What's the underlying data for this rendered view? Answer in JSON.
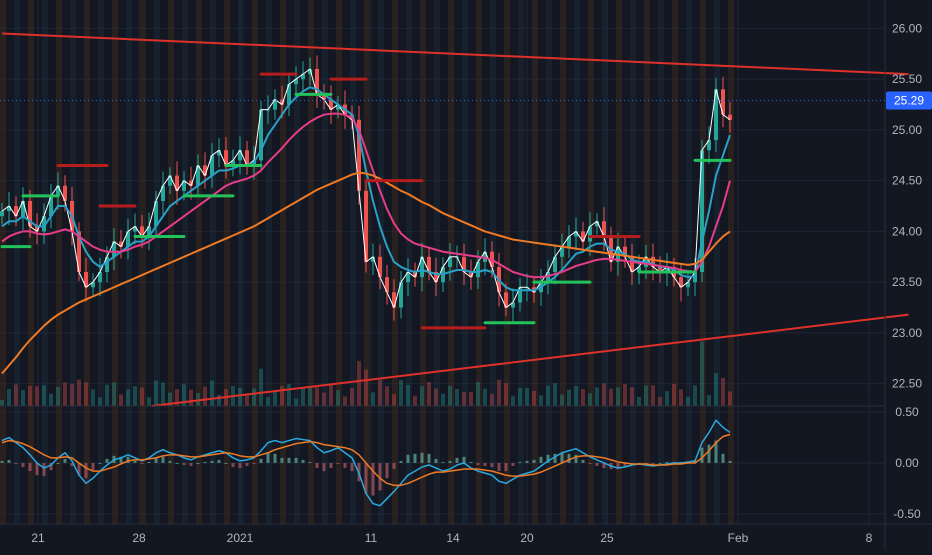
{
  "colors": {
    "background": "#131722",
    "grid": "#1f2535",
    "axis_text": "#b2b5be",
    "trendline": "#e0302a",
    "ema_short": "#ffffff",
    "ema_mid": "#29a0c8",
    "ema_long": "#e83c8a",
    "sma_200": "#f07a24",
    "stop_bull": "#22c35a",
    "stop_bear": "#b81d1d",
    "macd": "#29a9e0",
    "signal": "#f07a24",
    "price_tag_bg": "#2962ff"
  },
  "chart_data": [
    {
      "type": "line",
      "panel": "price",
      "x_tick_labels": [
        "21",
        "28",
        "2021",
        "11",
        "14",
        "20",
        "25",
        "Feb",
        "8"
      ],
      "y_tick_labels": [
        "26.00",
        "25.50",
        "25.00",
        "24.50",
        "24.00",
        "23.50",
        "23.00",
        "22.50"
      ],
      "ylim": [
        22.28,
        26.28
      ],
      "last_price": "25.29",
      "series": [
        {
          "key": "ma_short",
          "color": "#ffffff",
          "values": [
            24.2,
            24.25,
            24.15,
            24.3,
            24.05,
            24.0,
            24.15,
            24.35,
            24.45,
            24.3,
            24.0,
            23.6,
            23.45,
            23.5,
            23.6,
            23.75,
            23.9,
            23.85,
            24.0,
            24.05,
            23.95,
            24.05,
            24.3,
            24.45,
            24.55,
            24.4,
            24.5,
            24.45,
            24.65,
            24.55,
            24.75,
            24.8,
            24.65,
            24.7,
            24.8,
            24.65,
            24.7,
            25.2,
            25.2,
            25.3,
            25.25,
            25.45,
            25.5,
            25.55,
            25.6,
            25.35,
            25.3,
            25.2,
            25.25,
            25.15,
            25.1,
            24.4,
            23.7,
            23.75,
            23.55,
            23.4,
            23.25,
            23.5,
            23.6,
            23.55,
            23.75,
            23.6,
            23.5,
            23.65,
            23.75,
            23.75,
            23.6,
            23.55,
            23.7,
            23.8,
            23.65,
            23.4,
            23.25,
            23.3,
            23.45,
            23.45,
            23.4,
            23.5,
            23.6,
            23.75,
            23.85,
            23.95,
            24.0,
            23.9,
            24.05,
            24.1,
            23.95,
            23.7,
            23.85,
            23.75,
            23.6,
            23.65,
            23.75,
            23.65,
            23.6,
            23.65,
            23.55,
            23.45,
            23.5,
            23.6,
            24.8,
            24.9,
            25.4,
            25.15,
            25.1
          ]
        },
        {
          "key": "ma_mid",
          "color": "#29a0c8",
          "values": [
            24.05,
            24.1,
            24.1,
            24.15,
            24.1,
            24.05,
            24.05,
            24.15,
            24.25,
            24.25,
            24.15,
            23.95,
            23.8,
            23.7,
            23.65,
            23.7,
            23.75,
            23.8,
            23.85,
            23.9,
            23.9,
            23.95,
            24.05,
            24.15,
            24.25,
            24.3,
            24.35,
            24.4,
            24.45,
            24.5,
            24.55,
            24.6,
            24.6,
            24.62,
            24.65,
            24.65,
            24.68,
            24.8,
            24.95,
            25.05,
            25.15,
            25.25,
            25.32,
            25.38,
            25.42,
            25.4,
            25.35,
            25.3,
            25.25,
            25.2,
            25.15,
            24.95,
            24.6,
            24.3,
            24.05,
            23.85,
            23.7,
            23.65,
            23.62,
            23.6,
            23.62,
            23.6,
            23.58,
            23.58,
            23.6,
            23.62,
            23.62,
            23.6,
            23.6,
            23.62,
            23.6,
            23.52,
            23.45,
            23.42,
            23.42,
            23.42,
            23.42,
            23.45,
            23.5,
            23.55,
            23.62,
            23.7,
            23.78,
            23.8,
            23.85,
            23.88,
            23.88,
            23.82,
            23.8,
            23.78,
            23.72,
            23.7,
            23.7,
            23.68,
            23.65,
            23.65,
            23.62,
            23.57,
            23.55,
            23.56,
            23.9,
            24.2,
            24.55,
            24.75,
            24.95
          ]
        },
        {
          "key": "ma_long",
          "color": "#e83c8a",
          "values": [
            23.9,
            23.95,
            23.98,
            24.0,
            24.0,
            23.98,
            23.97,
            23.98,
            24.0,
            24.02,
            24.0,
            23.95,
            23.9,
            23.85,
            23.82,
            23.8,
            23.8,
            23.8,
            23.82,
            23.85,
            23.87,
            23.9,
            23.95,
            24.0,
            24.05,
            24.1,
            24.15,
            24.2,
            24.25,
            24.3,
            24.35,
            24.4,
            24.45,
            24.48,
            24.5,
            24.52,
            24.55,
            24.6,
            24.68,
            24.75,
            24.82,
            24.9,
            24.97,
            25.03,
            25.08,
            25.12,
            25.15,
            25.16,
            25.16,
            25.15,
            25.12,
            25.0,
            24.8,
            24.6,
            24.4,
            24.22,
            24.08,
            23.98,
            23.92,
            23.88,
            23.86,
            23.84,
            23.82,
            23.8,
            23.79,
            23.78,
            23.77,
            23.76,
            23.75,
            23.74,
            23.72,
            23.68,
            23.64,
            23.6,
            23.58,
            23.56,
            23.55,
            23.55,
            23.56,
            23.58,
            23.6,
            23.63,
            23.66,
            23.68,
            23.7,
            23.72,
            23.73,
            23.73,
            23.72,
            23.71,
            23.7,
            23.69,
            23.68,
            23.67,
            23.66,
            23.65,
            23.64,
            23.62,
            23.61,
            23.6,
            23.7,
            23.85,
            24.05,
            24.25,
            24.5
          ]
        },
        {
          "key": "sma_200",
          "color": "#f07a24",
          "values": [
            22.6,
            22.68,
            22.76,
            22.85,
            22.93,
            23.0,
            23.07,
            23.13,
            23.18,
            23.22,
            23.26,
            23.3,
            23.33,
            23.36,
            23.39,
            23.42,
            23.45,
            23.48,
            23.51,
            23.54,
            23.57,
            23.6,
            23.63,
            23.66,
            23.69,
            23.72,
            23.75,
            23.78,
            23.81,
            23.84,
            23.87,
            23.9,
            23.93,
            23.96,
            23.99,
            24.02,
            24.05,
            24.09,
            24.13,
            24.17,
            24.21,
            24.25,
            24.29,
            24.33,
            24.37,
            24.41,
            24.44,
            24.47,
            24.5,
            24.53,
            24.56,
            24.58,
            24.57,
            24.55,
            24.52,
            24.48,
            24.44,
            24.4,
            24.37,
            24.33,
            24.29,
            24.26,
            24.22,
            24.18,
            24.15,
            24.12,
            24.09,
            24.06,
            24.03,
            24.0,
            23.98,
            23.96,
            23.94,
            23.92,
            23.91,
            23.9,
            23.89,
            23.88,
            23.87,
            23.86,
            23.85,
            23.84,
            23.83,
            23.82,
            23.81,
            23.8,
            23.79,
            23.78,
            23.77,
            23.76,
            23.75,
            23.74,
            23.73,
            23.72,
            23.71,
            23.7,
            23.69,
            23.68,
            23.67,
            23.68,
            23.72,
            23.8,
            23.88,
            23.95,
            24.0
          ]
        }
      ],
      "stop_segments": [
        {
          "trend": "bull",
          "from": 0,
          "to": 4,
          "value": 23.85
        },
        {
          "trend": "bull",
          "from": 3,
          "to": 8,
          "value": 24.35
        },
        {
          "trend": "bear",
          "from": 8,
          "to": 15,
          "value": 24.65
        },
        {
          "trend": "bear",
          "from": 14,
          "to": 19,
          "value": 24.25
        },
        {
          "trend": "bull",
          "from": 19,
          "to": 26,
          "value": 23.95
        },
        {
          "trend": "bull",
          "from": 26,
          "to": 33,
          "value": 24.35
        },
        {
          "trend": "bull",
          "from": 32,
          "to": 37,
          "value": 24.65
        },
        {
          "trend": "bear",
          "from": 37,
          "to": 42,
          "value": 25.55
        },
        {
          "trend": "bull",
          "from": 42,
          "to": 47,
          "value": 25.35
        },
        {
          "trend": "bear",
          "from": 47,
          "to": 52,
          "value": 25.5
        },
        {
          "trend": "bear",
          "from": 52,
          "to": 60,
          "value": 24.5
        },
        {
          "trend": "bear",
          "from": 60,
          "to": 69,
          "value": 23.05
        },
        {
          "trend": "bull",
          "from": 69,
          "to": 76,
          "value": 23.1
        },
        {
          "trend": "bull",
          "from": 76,
          "to": 84,
          "value": 23.5
        },
        {
          "trend": "bear",
          "from": 84,
          "to": 91,
          "value": 23.95
        },
        {
          "trend": "bull",
          "from": 91,
          "to": 99,
          "value": 23.6
        },
        {
          "trend": "bull",
          "from": 99,
          "to": 104,
          "value": 24.7
        }
      ],
      "trendlines": [
        {
          "points": [
            [
              0,
              25.95
            ],
            [
              129.5,
              25.55
            ]
          ]
        },
        {
          "points": [
            [
              21.4,
              22.28
            ],
            [
              129.5,
              23.18
            ]
          ]
        }
      ]
    },
    {
      "type": "line",
      "panel": "macd",
      "y_tick_labels": [
        "0.50",
        "0.00",
        "-0.50"
      ],
      "ylim": [
        -0.6,
        0.55
      ],
      "series": [
        {
          "key": "macd",
          "color": "#29a9e0",
          "values": [
            0.22,
            0.25,
            0.2,
            0.15,
            0.08,
            0.0,
            -0.05,
            -0.02,
            0.05,
            0.1,
            0.02,
            -0.12,
            -0.2,
            -0.15,
            -0.08,
            -0.02,
            0.03,
            0.05,
            0.08,
            0.05,
            0.02,
            0.05,
            0.1,
            0.13,
            0.1,
            0.08,
            0.05,
            0.03,
            0.06,
            0.08,
            0.1,
            0.12,
            0.1,
            0.05,
            0.02,
            0.03,
            0.05,
            0.12,
            0.2,
            0.22,
            0.2,
            0.22,
            0.24,
            0.23,
            0.22,
            0.15,
            0.1,
            0.12,
            0.15,
            0.1,
            0.05,
            -0.1,
            -0.3,
            -0.4,
            -0.42,
            -0.35,
            -0.28,
            -0.2,
            -0.12,
            -0.08,
            -0.04,
            -0.02,
            -0.05,
            -0.08,
            -0.06,
            -0.02,
            0.0,
            -0.05,
            -0.08,
            -0.1,
            -0.12,
            -0.18,
            -0.2,
            -0.16,
            -0.12,
            -0.1,
            -0.08,
            -0.03,
            0.02,
            0.06,
            0.1,
            0.12,
            0.14,
            0.1,
            0.06,
            0.03,
            0.0,
            -0.03,
            -0.05,
            -0.04,
            -0.02,
            -0.01,
            -0.02,
            -0.03,
            -0.02,
            -0.01,
            0.0,
            0.0,
            0.01,
            0.02,
            0.2,
            0.3,
            0.42,
            0.35,
            0.3
          ]
        },
        {
          "key": "signal",
          "color": "#f07a24",
          "values": [
            0.2,
            0.22,
            0.21,
            0.19,
            0.16,
            0.12,
            0.08,
            0.05,
            0.05,
            0.06,
            0.05,
            0.0,
            -0.05,
            -0.08,
            -0.08,
            -0.06,
            -0.04,
            -0.01,
            0.02,
            0.03,
            0.03,
            0.04,
            0.05,
            0.07,
            0.08,
            0.08,
            0.07,
            0.06,
            0.06,
            0.07,
            0.08,
            0.09,
            0.1,
            0.09,
            0.07,
            0.06,
            0.06,
            0.08,
            0.1,
            0.13,
            0.15,
            0.17,
            0.19,
            0.2,
            0.21,
            0.2,
            0.18,
            0.17,
            0.16,
            0.15,
            0.13,
            0.08,
            0.0,
            -0.08,
            -0.15,
            -0.2,
            -0.22,
            -0.22,
            -0.2,
            -0.17,
            -0.14,
            -0.11,
            -0.09,
            -0.09,
            -0.08,
            -0.07,
            -0.06,
            -0.06,
            -0.06,
            -0.07,
            -0.08,
            -0.1,
            -0.12,
            -0.13,
            -0.13,
            -0.12,
            -0.11,
            -0.09,
            -0.06,
            -0.03,
            0.0,
            0.03,
            0.06,
            0.07,
            0.07,
            0.06,
            0.05,
            0.03,
            0.01,
            0.0,
            -0.01,
            -0.01,
            -0.01,
            -0.02,
            -0.02,
            -0.02,
            -0.01,
            -0.01,
            0.0,
            0.0,
            0.05,
            0.12,
            0.2,
            0.26,
            0.28
          ]
        }
      ]
    }
  ]
}
